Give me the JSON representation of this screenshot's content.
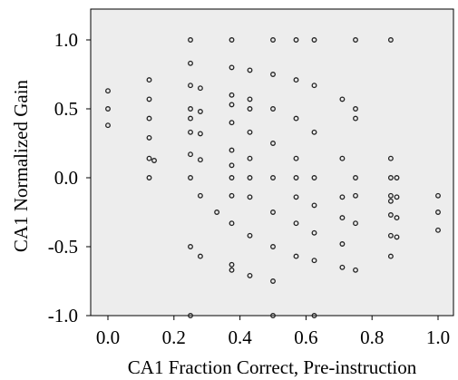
{
  "chart_data": {
    "type": "scatter",
    "xlabel": "CA1 Fraction Correct, Pre-instruction",
    "ylabel": "CA1 Normalized Gain",
    "xlim": [
      -0.05,
      1.05
    ],
    "ylim": [
      -1.0,
      1.2
    ],
    "xticks": [
      0.0,
      0.2,
      0.4,
      0.6,
      0.8,
      1.0
    ],
    "xtick_labels": [
      "0.0",
      "0.2",
      "0.4",
      "0.6",
      "0.8",
      "1.0"
    ],
    "yticks": [
      -1.0,
      -0.5,
      0.0,
      0.5,
      1.0
    ],
    "ytick_labels": [
      "-1.0",
      "-0.5",
      "0.0",
      "0.5",
      "1.0"
    ],
    "grid": false,
    "plot_background": "#ededed",
    "marker": "open circle",
    "series": [
      {
        "points": [
          [
            0.0,
            0.63
          ],
          [
            0.0,
            0.5
          ],
          [
            0.0,
            0.38
          ],
          [
            0.125,
            0.71
          ],
          [
            0.125,
            0.57
          ],
          [
            0.125,
            0.43
          ],
          [
            0.125,
            0.29
          ],
          [
            0.125,
            0.14
          ],
          [
            0.125,
            0.0
          ],
          [
            0.14,
            0.125
          ],
          [
            0.25,
            1.0
          ],
          [
            0.25,
            0.83
          ],
          [
            0.25,
            0.67
          ],
          [
            0.25,
            0.5
          ],
          [
            0.25,
            0.43
          ],
          [
            0.25,
            0.33
          ],
          [
            0.25,
            0.17
          ],
          [
            0.25,
            0.0
          ],
          [
            0.25,
            -0.5
          ],
          [
            0.25,
            -1.0
          ],
          [
            0.28,
            0.65
          ],
          [
            0.28,
            0.48
          ],
          [
            0.28,
            0.32
          ],
          [
            0.28,
            0.13
          ],
          [
            0.28,
            -0.13
          ],
          [
            0.28,
            -0.57
          ],
          [
            0.33,
            -0.25
          ],
          [
            0.375,
            1.0
          ],
          [
            0.375,
            0.8
          ],
          [
            0.375,
            0.6
          ],
          [
            0.375,
            0.53
          ],
          [
            0.375,
            0.4
          ],
          [
            0.375,
            0.2
          ],
          [
            0.375,
            0.09
          ],
          [
            0.375,
            0.0
          ],
          [
            0.375,
            -0.13
          ],
          [
            0.375,
            -0.33
          ],
          [
            0.375,
            -0.63
          ],
          [
            0.375,
            -0.67
          ],
          [
            0.43,
            0.78
          ],
          [
            0.43,
            0.57
          ],
          [
            0.43,
            0.5
          ],
          [
            0.43,
            0.33
          ],
          [
            0.43,
            0.14
          ],
          [
            0.43,
            0.0
          ],
          [
            0.43,
            -0.14
          ],
          [
            0.43,
            -0.42
          ],
          [
            0.43,
            -0.71
          ],
          [
            0.5,
            1.0
          ],
          [
            0.5,
            0.75
          ],
          [
            0.5,
            0.5
          ],
          [
            0.5,
            0.25
          ],
          [
            0.5,
            0.0
          ],
          [
            0.5,
            -0.25
          ],
          [
            0.5,
            -0.5
          ],
          [
            0.5,
            -0.75
          ],
          [
            0.5,
            -1.0
          ],
          [
            0.57,
            1.0
          ],
          [
            0.57,
            0.71
          ],
          [
            0.57,
            0.43
          ],
          [
            0.57,
            0.14
          ],
          [
            0.57,
            0.0
          ],
          [
            0.57,
            -0.14
          ],
          [
            0.57,
            -0.33
          ],
          [
            0.57,
            -0.57
          ],
          [
            0.625,
            1.0
          ],
          [
            0.625,
            0.67
          ],
          [
            0.625,
            0.33
          ],
          [
            0.625,
            0.0
          ],
          [
            0.625,
            -0.2
          ],
          [
            0.625,
            -0.4
          ],
          [
            0.625,
            -0.6
          ],
          [
            0.625,
            -1.0
          ],
          [
            0.71,
            0.57
          ],
          [
            0.71,
            0.14
          ],
          [
            0.71,
            -0.14
          ],
          [
            0.71,
            -0.29
          ],
          [
            0.71,
            -0.48
          ],
          [
            0.71,
            -0.65
          ],
          [
            0.75,
            1.0
          ],
          [
            0.75,
            0.5
          ],
          [
            0.75,
            0.43
          ],
          [
            0.75,
            0.0
          ],
          [
            0.75,
            -0.13
          ],
          [
            0.75,
            -0.33
          ],
          [
            0.75,
            -0.67
          ],
          [
            0.857,
            1.0
          ],
          [
            0.857,
            0.14
          ],
          [
            0.857,
            0.0
          ],
          [
            0.857,
            -0.13
          ],
          [
            0.857,
            -0.17
          ],
          [
            0.857,
            -0.27
          ],
          [
            0.857,
            -0.42
          ],
          [
            0.857,
            -0.57
          ],
          [
            0.875,
            0.0
          ],
          [
            0.875,
            -0.14
          ],
          [
            0.875,
            -0.29
          ],
          [
            0.875,
            -0.43
          ],
          [
            1.0,
            -0.13
          ],
          [
            1.0,
            -0.25
          ],
          [
            1.0,
            -0.38
          ]
        ]
      }
    ]
  }
}
